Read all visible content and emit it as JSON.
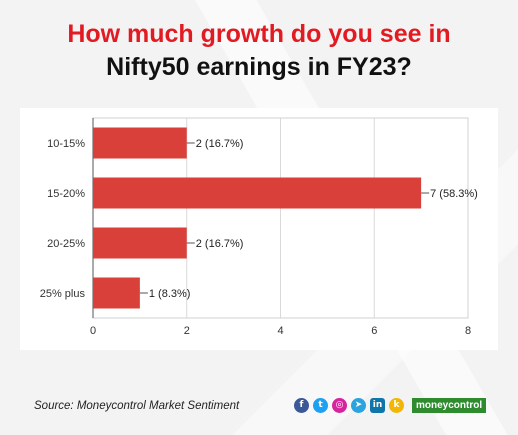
{
  "title": {
    "line1": "How much growth do you see in",
    "line2": "Nifty50 earnings in FY23?"
  },
  "source": "Source: Moneycontrol Market Sentiment",
  "brand": "moneycontrol",
  "colors": {
    "bar": "#d9403a",
    "title_accent": "#e21b23",
    "brand": "#2e8b2e"
  },
  "socials": [
    {
      "name": "facebook-icon",
      "glyph": "f"
    },
    {
      "name": "twitter-icon",
      "glyph": "t"
    },
    {
      "name": "instagram-icon",
      "glyph": "◎"
    },
    {
      "name": "telegram-icon",
      "glyph": "➤"
    },
    {
      "name": "linkedin-icon",
      "glyph": "in"
    },
    {
      "name": "koo-icon",
      "glyph": "k"
    }
  ],
  "chart_data": {
    "type": "bar",
    "orientation": "horizontal",
    "categories": [
      "10-15%",
      "15-20%",
      "20-25%",
      "25% plus"
    ],
    "values": [
      2,
      7,
      2,
      1
    ],
    "data_labels": [
      "2 (16.7%)",
      "7 (58.3%)",
      "2 (16.7%)",
      "1 (8.3%)"
    ],
    "xlim": [
      0,
      8
    ],
    "xticks": [
      "0",
      "2",
      "4",
      "6",
      "8"
    ],
    "grid": true,
    "legend": "none"
  }
}
